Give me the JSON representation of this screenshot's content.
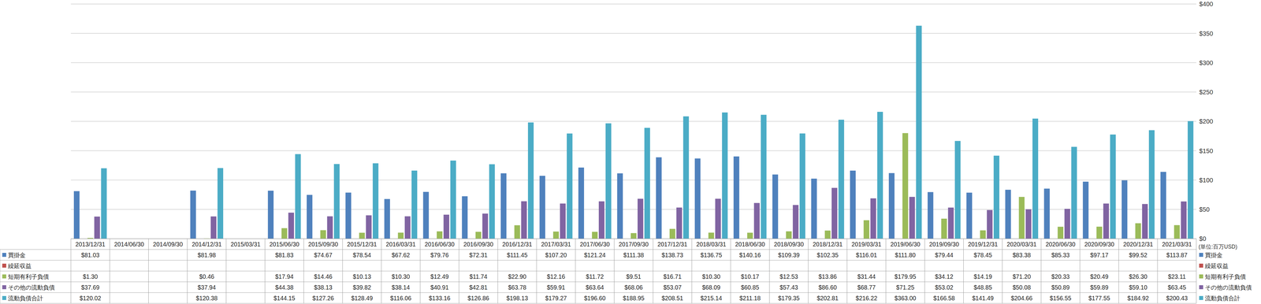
{
  "chart_data": {
    "type": "bar",
    "y_label": "(単位:百万USD)",
    "categories": [
      "2013/12/31",
      "2014/06/30",
      "2014/09/30",
      "2014/12/31",
      "2015/03/31",
      "2015/06/30",
      "2015/09/30",
      "2015/12/31",
      "2016/03/31",
      "2016/06/30",
      "2016/09/30",
      "2016/12/31",
      "2017/03/31",
      "2017/06/30",
      "2017/09/30",
      "2017/12/31",
      "2018/03/31",
      "2018/06/30",
      "2018/09/30",
      "2018/12/31",
      "2019/03/31",
      "2019/06/30",
      "2019/09/30",
      "2019/12/31",
      "2020/03/31",
      "2020/06/30",
      "2020/09/30",
      "2020/12/31",
      "2021/03/31"
    ],
    "series": [
      {
        "name": "買掛金",
        "color": "#4f81bd",
        "values": [
          81.03,
          null,
          null,
          81.98,
          null,
          81.83,
          74.67,
          78.54,
          67.62,
          79.76,
          72.31,
          111.45,
          107.2,
          121.24,
          111.38,
          138.73,
          136.75,
          140.16,
          109.39,
          102.35,
          116.01,
          111.8,
          79.44,
          78.45,
          83.38,
          85.33,
          97.17,
          99.52,
          113.87
        ],
        "value_labels": [
          "$81.03",
          null,
          null,
          "$81.98",
          null,
          "$81.83",
          "$74.67",
          "$78.54",
          "$67.62",
          "$79.76",
          "$72.31",
          "$111.45",
          "$107.20",
          "$121.24",
          "$111.38",
          "$138.73",
          "$136.75",
          "$140.16",
          "$109.39",
          "$102.35",
          "$116.01",
          "$111.80",
          "$79.44",
          "$78.45",
          "$83.38",
          "$85.33",
          "$97.17",
          "$99.52",
          "$113.87"
        ]
      },
      {
        "name": "繰延収益",
        "color": "#c0504d",
        "values": [
          null,
          null,
          null,
          null,
          null,
          null,
          null,
          null,
          null,
          null,
          null,
          null,
          null,
          null,
          null,
          null,
          null,
          null,
          null,
          null,
          null,
          null,
          null,
          null,
          null,
          null,
          null,
          null,
          null
        ],
        "value_labels": [
          null,
          null,
          null,
          null,
          null,
          null,
          null,
          null,
          null,
          null,
          null,
          null,
          null,
          null,
          null,
          null,
          null,
          null,
          null,
          null,
          null,
          null,
          null,
          null,
          null,
          null,
          null,
          null,
          null
        ]
      },
      {
        "name": "短期有利子負債",
        "color": "#9bbb59",
        "values": [
          1.3,
          null,
          null,
          0.46,
          null,
          17.94,
          14.46,
          10.13,
          10.3,
          12.49,
          11.74,
          22.9,
          12.16,
          11.72,
          9.51,
          16.71,
          10.3,
          10.17,
          12.53,
          13.86,
          31.44,
          179.95,
          34.12,
          14.19,
          71.2,
          20.33,
          20.49,
          26.3,
          23.11
        ],
        "value_labels": [
          "$1.30",
          null,
          null,
          "$0.46",
          null,
          "$17.94",
          "$14.46",
          "$10.13",
          "$10.30",
          "$12.49",
          "$11.74",
          "$22.90",
          "$12.16",
          "$11.72",
          "$9.51",
          "$16.71",
          "$10.30",
          "$10.17",
          "$12.53",
          "$13.86",
          "$31.44",
          "$179.95",
          "$34.12",
          "$14.19",
          "$71.20",
          "$20.33",
          "$20.49",
          "$26.30",
          "$23.11"
        ]
      },
      {
        "name": "その他の流動負債",
        "color": "#8064a2",
        "values": [
          37.69,
          null,
          null,
          37.94,
          null,
          44.38,
          38.13,
          39.82,
          38.14,
          40.91,
          42.81,
          63.78,
          59.91,
          63.64,
          68.06,
          53.07,
          68.09,
          60.85,
          57.43,
          86.6,
          68.77,
          71.25,
          53.02,
          48.85,
          50.08,
          50.89,
          59.89,
          59.1,
          63.45
        ],
        "value_labels": [
          "$37.69",
          null,
          null,
          "$37.94",
          null,
          "$44.38",
          "$38.13",
          "$39.82",
          "$38.14",
          "$40.91",
          "$42.81",
          "$63.78",
          "$59.91",
          "$63.64",
          "$68.06",
          "$53.07",
          "$68.09",
          "$60.85",
          "$57.43",
          "$86.60",
          "$68.77",
          "$71.25",
          "$53.02",
          "$48.85",
          "$50.08",
          "$50.89",
          "$59.89",
          "$59.10",
          "$63.45"
        ]
      },
      {
        "name": "流動負債合計",
        "color": "#4bacc6",
        "values": [
          120.02,
          null,
          null,
          120.38,
          null,
          144.15,
          127.26,
          128.49,
          116.06,
          133.16,
          126.86,
          198.13,
          179.27,
          196.6,
          188.95,
          208.51,
          215.14,
          211.18,
          179.35,
          202.81,
          216.22,
          363.0,
          166.58,
          141.49,
          204.66,
          156.55,
          177.55,
          184.92,
          200.43
        ],
        "value_labels": [
          "$120.02",
          null,
          null,
          "$120.38",
          null,
          "$144.15",
          "$127.26",
          "$128.49",
          "$116.06",
          "$133.16",
          "$126.86",
          "$198.13",
          "$179.27",
          "$196.60",
          "$188.95",
          "$208.51",
          "$215.14",
          "$211.18",
          "$179.35",
          "$202.81",
          "$216.22",
          "$363.00",
          "$166.58",
          "$141.49",
          "$204.66",
          "$156.55",
          "$177.55",
          "$184.92",
          "$200.43"
        ]
      }
    ],
    "ylim": [
      0,
      400
    ],
    "yticks": [
      {
        "value": 0,
        "label": "$0"
      },
      {
        "value": 50,
        "label": "$50"
      },
      {
        "value": 100,
        "label": "$100"
      },
      {
        "value": 150,
        "label": "$150"
      },
      {
        "value": 200,
        "label": "$200"
      },
      {
        "value": 250,
        "label": "$250"
      },
      {
        "value": 300,
        "label": "$300"
      },
      {
        "value": 350,
        "label": "$350"
      },
      {
        "value": 400,
        "label": "$400"
      }
    ],
    "grid": true,
    "legend": "right"
  }
}
